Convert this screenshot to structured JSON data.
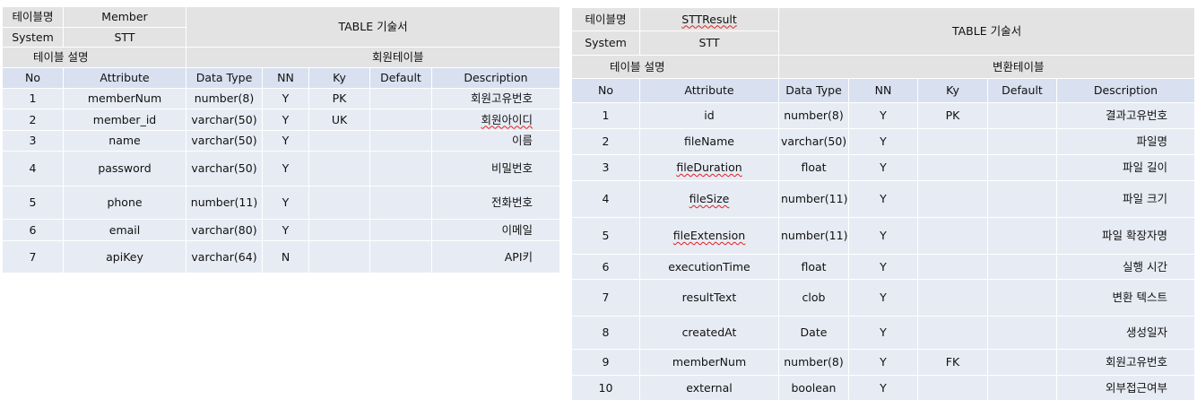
{
  "labels": {
    "table_name": "테이블명",
    "system": "System",
    "table_desc": "테이블 설명",
    "doc_title": "TABLE 기술서"
  },
  "columns": [
    "No",
    "Attribute",
    "Data Type",
    "NN",
    "Ky",
    "Default",
    "Description"
  ],
  "tables": [
    {
      "name": "Member",
      "system": "STT",
      "description": "회원테이블",
      "rows": [
        {
          "no": "1",
          "attribute": "memberNum",
          "data_type": "number(8)",
          "nn": "Y",
          "ky": "PK",
          "default": "",
          "description": "회원고유번호"
        },
        {
          "no": "2",
          "attribute": "member_id",
          "data_type": "varchar(50)",
          "nn": "Y",
          "ky": "UK",
          "default": "",
          "description": "회원아이디"
        },
        {
          "no": "3",
          "attribute": "name",
          "data_type": "varchar(50)",
          "nn": "Y",
          "ky": "",
          "default": "",
          "description": "이름"
        },
        {
          "no": "4",
          "attribute": "password",
          "data_type": "varchar(50)",
          "nn": "Y",
          "ky": "",
          "default": "",
          "description": "비밀번호"
        },
        {
          "no": "5",
          "attribute": "phone",
          "data_type": "number(11)",
          "nn": "Y",
          "ky": "",
          "default": "",
          "description": "전화번호"
        },
        {
          "no": "6",
          "attribute": "email",
          "data_type": "varchar(80)",
          "nn": "Y",
          "ky": "",
          "default": "",
          "description": "이메일"
        },
        {
          "no": "7",
          "attribute": "apiKey",
          "data_type": "varchar(64)",
          "nn": "N",
          "ky": "",
          "default": "",
          "description": "API키"
        }
      ]
    },
    {
      "name": "STTResult",
      "system": "STT",
      "description": "변환테이블",
      "rows": [
        {
          "no": "1",
          "attribute": "id",
          "data_type": "number(8)",
          "nn": "Y",
          "ky": "PK",
          "default": "",
          "description": "결과고유번호"
        },
        {
          "no": "2",
          "attribute": "fileName",
          "data_type": "varchar(50)",
          "nn": "Y",
          "ky": "",
          "default": "",
          "description": "파일명"
        },
        {
          "no": "3",
          "attribute": "fileDuration",
          "data_type": "float",
          "nn": "Y",
          "ky": "",
          "default": "",
          "description": "파일 길이"
        },
        {
          "no": "4",
          "attribute": "fileSize",
          "data_type": "number(11)",
          "nn": "Y",
          "ky": "",
          "default": "",
          "description": "파일 크기"
        },
        {
          "no": "5",
          "attribute": "fileExtension",
          "data_type": "number(11)",
          "nn": "Y",
          "ky": "",
          "default": "",
          "description": "파일 확장자명"
        },
        {
          "no": "6",
          "attribute": "executionTime",
          "data_type": "float",
          "nn": "Y",
          "ky": "",
          "default": "",
          "description": "실행 시간"
        },
        {
          "no": "7",
          "attribute": "resultText",
          "data_type": "clob",
          "nn": "Y",
          "ky": "",
          "default": "",
          "description": "변환 텍스트"
        },
        {
          "no": "8",
          "attribute": "createdAt",
          "data_type": "Date",
          "nn": "Y",
          "ky": "",
          "default": "",
          "description": "생성일자"
        },
        {
          "no": "9",
          "attribute": "memberNum",
          "data_type": "number(8)",
          "nn": "Y",
          "ky": "FK",
          "default": "",
          "description": "회원고유번호"
        },
        {
          "no": "10",
          "attribute": "external",
          "data_type": "boolean",
          "nn": "Y",
          "ky": "",
          "default": "",
          "description": "외부접근여부"
        }
      ]
    }
  ]
}
